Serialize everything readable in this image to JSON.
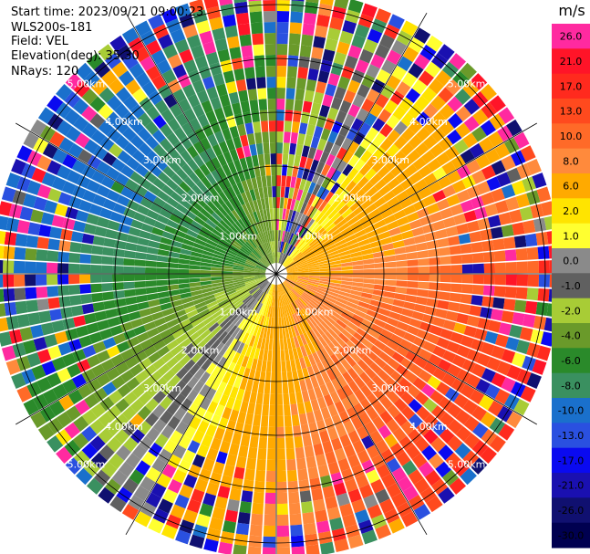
{
  "header": {
    "start_time": "Start time: 2023/09/21 09:00:23",
    "instrument": "WLS200s-181",
    "field": "Field: VEL",
    "elevation": "Elevation(deg): 35.30",
    "nrays": "NRays: 120"
  },
  "chart_data": {
    "type": "heatmap",
    "projection": "polar-ppi",
    "field": "VEL",
    "nrays": 120,
    "elevation_deg": 35.3,
    "ring_labels_km": [
      "1.00km",
      "2.00km",
      "3.00km",
      "4.00km",
      "5.00km"
    ],
    "colorbar": {
      "unit": "m/s",
      "ticks": [
        "26.0",
        "21.0",
        "17.0",
        "13.0",
        "10.0",
        "8.0",
        "6.0",
        "2.0",
        "1.0",
        "0.0",
        "-1.0",
        "-2.0",
        "-4.0",
        "-6.0",
        "-8.0",
        "-10.0",
        "-13.0",
        "-17.0",
        "-21.0",
        "-26.0",
        "-30.0"
      ],
      "colors": [
        "#ff2aa0",
        "#ff1428",
        "#ff2a1e",
        "#ff4a1e",
        "#ff6a28",
        "#ff8a3c",
        "#ffaa00",
        "#ffe400",
        "#ffff30",
        "#8a8a8a",
        "#606060",
        "#a8cc36",
        "#6a9a2a",
        "#2a8a2a",
        "#3a9060",
        "#1a70cc",
        "#2a50e0",
        "#0a0af0",
        "#1a10b0",
        "#101070",
        "#000050"
      ]
    },
    "pattern": {
      "positive_sector_deg": [
        0,
        180
      ],
      "negative_sector_deg": [
        180,
        360
      ]
    }
  }
}
